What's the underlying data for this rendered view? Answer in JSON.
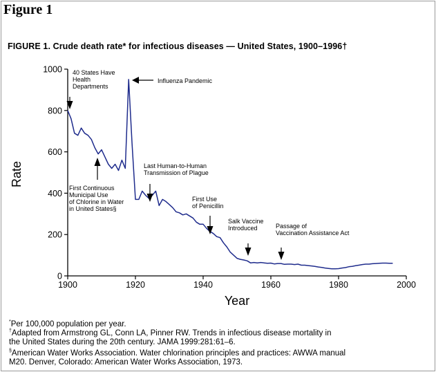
{
  "figure_label": "Figure 1",
  "chart_data": {
    "type": "line",
    "title": "FIGURE 1. Crude death rate* for infectious diseases — United States, 1900–1996†",
    "xlabel": "Year",
    "ylabel": "Rate",
    "xlim": [
      1900,
      2000
    ],
    "ylim": [
      0,
      1000
    ],
    "x_ticks": [
      "1900",
      "1920",
      "1940",
      "1960",
      "1980",
      "2000"
    ],
    "y_ticks": [
      "0",
      "200",
      "400",
      "600",
      "800",
      "1000"
    ],
    "series": [
      {
        "name": "Crude death rate",
        "x": [
          1900,
          1901,
          1902,
          1903,
          1904,
          1905,
          1906,
          1907,
          1908,
          1909,
          1910,
          1911,
          1912,
          1913,
          1914,
          1915,
          1916,
          1917,
          1918,
          1919,
          1920,
          1921,
          1922,
          1923,
          1924,
          1925,
          1926,
          1927,
          1928,
          1929,
          1930,
          1931,
          1932,
          1933,
          1934,
          1935,
          1936,
          1937,
          1938,
          1939,
          1940,
          1941,
          1942,
          1943,
          1944,
          1945,
          1946,
          1947,
          1948,
          1949,
          1950,
          1951,
          1952,
          1953,
          1954,
          1955,
          1956,
          1957,
          1958,
          1959,
          1960,
          1961,
          1962,
          1963,
          1964,
          1965,
          1966,
          1967,
          1968,
          1969,
          1970,
          1971,
          1972,
          1973,
          1974,
          1975,
          1976,
          1977,
          1978,
          1979,
          1980,
          1981,
          1982,
          1983,
          1984,
          1985,
          1986,
          1987,
          1988,
          1989,
          1990,
          1991,
          1992,
          1993,
          1994,
          1995,
          1996
        ],
        "values": [
          800,
          760,
          690,
          680,
          715,
          690,
          680,
          660,
          620,
          590,
          610,
          575,
          540,
          520,
          540,
          510,
          560,
          520,
          950,
          640,
          370,
          370,
          410,
          390,
          375,
          390,
          410,
          340,
          370,
          360,
          345,
          330,
          310,
          305,
          295,
          300,
          290,
          280,
          260,
          250,
          250,
          230,
          215,
          205,
          190,
          185,
          160,
          140,
          115,
          100,
          85,
          80,
          77,
          73,
          63,
          65,
          63,
          65,
          63,
          61,
          62,
          58,
          60,
          60,
          56,
          57,
          57,
          55,
          57,
          52,
          52,
          50,
          48,
          46,
          43,
          41,
          38,
          36,
          34,
          34,
          35,
          38,
          40,
          44,
          46,
          49,
          52,
          55,
          57,
          57,
          59,
          60,
          61,
          62,
          62,
          61,
          61
        ]
      }
    ],
    "annotations": [
      {
        "lines": [
          "40 States Have",
          "Health",
          "Departments"
        ],
        "year": 1901,
        "arrow": "down"
      },
      {
        "lines": [
          "Influenza Pandemic"
        ],
        "year": 1918,
        "arrow": "left"
      },
      {
        "lines": [
          "First Continuous",
          "Municipal Use",
          "of Chlorine in Water",
          "in United States§"
        ],
        "year": 1908,
        "arrow": "up"
      },
      {
        "lines": [
          "Last Human-to-Human",
          "Transmission of Plague"
        ],
        "year": 1924,
        "arrow": "down"
      },
      {
        "lines": [
          "First Use",
          "of Penicillin"
        ],
        "year": 1942,
        "arrow": "down"
      },
      {
        "lines": [
          "Salk Vaccine",
          "Introduced"
        ],
        "year": 1955,
        "arrow": "down"
      },
      {
        "lines": [
          "Passage of",
          "Vaccination Assistance Act"
        ],
        "year": 1962,
        "arrow": "down"
      }
    ]
  },
  "footnotes": [
    {
      "mark": "*",
      "lines": [
        "Per 100,000 population per year."
      ]
    },
    {
      "mark": "†",
      "lines": [
        "Adapted from Armstrong GL, Conn LA, Pinner RW. Trends in infectious disease mortality in",
        "the United States during the 20th century. JAMA 1999:281:61–6."
      ]
    },
    {
      "mark": "§",
      "lines": [
        "American Water Works Association. Water chlorination principles and practices: AWWA manual",
        "M20. Denver, Colorado: American Water Works Association, 1973."
      ]
    }
  ],
  "colors": {
    "series_line": "#1e2b8c",
    "axis": "#000000",
    "text": "#000000",
    "border": "#9a9a9a"
  }
}
